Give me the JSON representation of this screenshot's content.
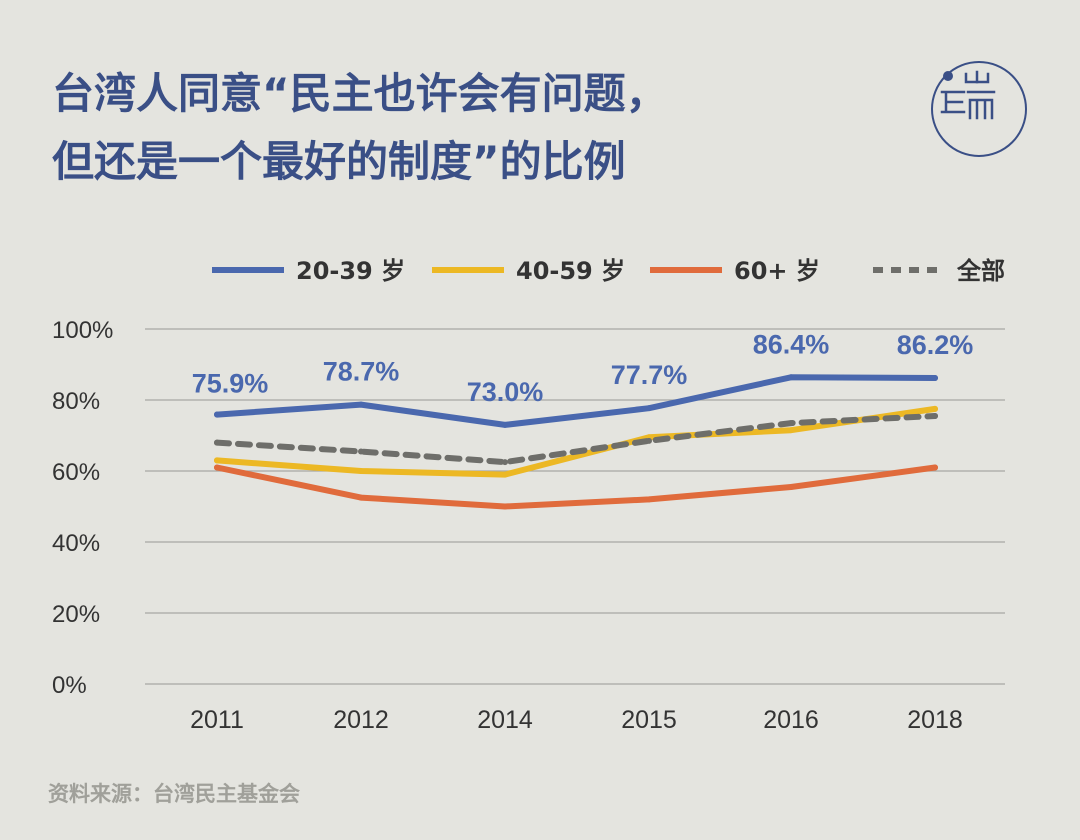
{
  "title": {
    "line1": "台湾人同意“民主也许会有问题，",
    "line2": "但还是一个最好的制度”的比例"
  },
  "logo_text": "端",
  "source": "资料来源：台湾民主基金会",
  "colors": {
    "background": "#e4e4df",
    "title": "#3a4f86",
    "grid": "#a8a8a4",
    "age_20_39": "#4a68ae",
    "age_40_59": "#ecb824",
    "age_60_plus": "#e06b3c",
    "all": "#6e6e6a"
  },
  "chart_data": {
    "type": "line",
    "title": "台湾人同意“民主也许会有问题，但还是一个最好的制度”的比例",
    "xlabel": "",
    "ylabel": "",
    "categories": [
      "2011",
      "2012",
      "2014",
      "2015",
      "2016",
      "2018"
    ],
    "ylim": [
      0,
      100
    ],
    "yticks": [
      "0%",
      "20%",
      "40%",
      "60%",
      "80%",
      "100%"
    ],
    "grid": true,
    "legend_position": "top",
    "series": [
      {
        "name": "20-39 岁",
        "values": [
          75.9,
          78.7,
          73.0,
          77.7,
          86.4,
          86.2
        ],
        "labels": [
          "75.9%",
          "78.7%",
          "73.0%",
          "77.7%",
          "86.4%",
          "86.2%"
        ],
        "color": "#4a68ae",
        "dashed": false
      },
      {
        "name": "40-59 岁",
        "values": [
          63.0,
          60.0,
          59.0,
          69.5,
          71.5,
          77.5
        ],
        "color": "#ecb824",
        "dashed": false
      },
      {
        "name": "60+ 岁",
        "values": [
          61.0,
          52.5,
          50.0,
          52.0,
          55.5,
          61.0
        ],
        "color": "#e06b3c",
        "dashed": false
      },
      {
        "name": "全部",
        "values": [
          68.0,
          65.5,
          62.5,
          68.5,
          73.5,
          75.5
        ],
        "color": "#6e6e6a",
        "dashed": true
      }
    ]
  }
}
